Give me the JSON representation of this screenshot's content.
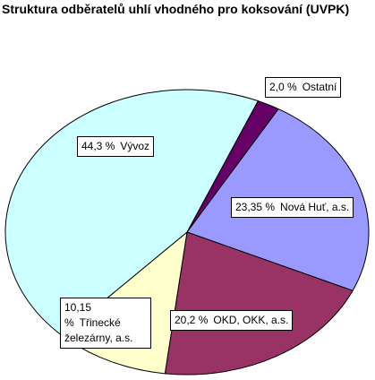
{
  "chart_data": {
    "type": "pie",
    "title": "Struktura odběratelů uhlí vhodného pro koksování (UVPK)",
    "categories": [
      "Ostatní",
      "Nová Huť, a.s.",
      "OKD, OKK, a.s.",
      "Třinecké železárny, a.s.",
      "Vývoz"
    ],
    "values": [
      2.0,
      23.35,
      20.2,
      10.15,
      44.3
    ],
    "value_labels": [
      "2,0 %",
      "23,35 %",
      "20,2 %",
      "10,15 %",
      "44,3 %"
    ],
    "colors": [
      "#660066",
      "#9999ff",
      "#993366",
      "#ffffcc",
      "#ccffff"
    ]
  }
}
